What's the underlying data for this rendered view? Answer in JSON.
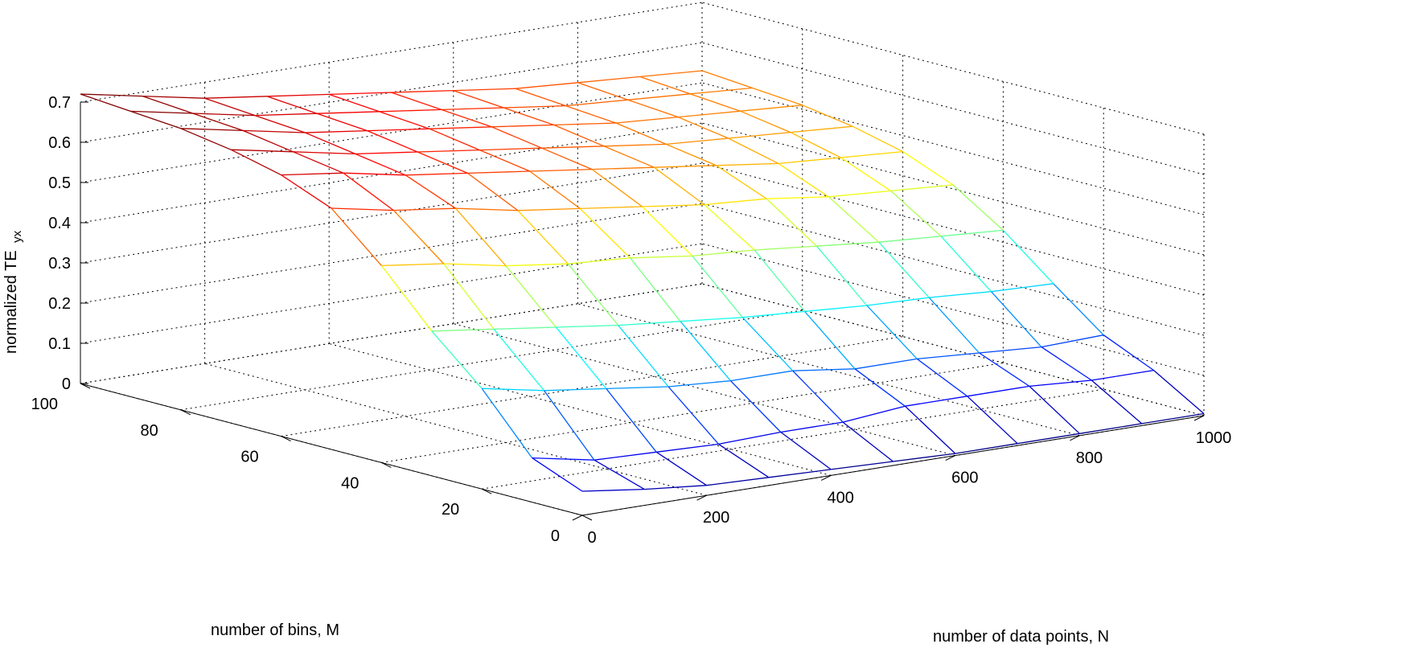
{
  "chart_data": {
    "type": "surface-mesh",
    "xlabel": "number of data points, N",
    "ylabel": "number of bins, M",
    "zlabel_main": "normalized TE",
    "zlabel_sub": "yx",
    "x_ticks": [
      "0",
      "200",
      "400",
      "600",
      "800",
      "1000"
    ],
    "y_ticks": [
      "0",
      "20",
      "40",
      "60",
      "80",
      "100"
    ],
    "z_ticks": [
      "0",
      "0.1",
      "0.2",
      "0.3",
      "0.4",
      "0.5",
      "0.6",
      "0.7"
    ],
    "xlim": [
      0,
      1000
    ],
    "ylim": [
      0,
      100
    ],
    "zlim": [
      0,
      0.7
    ],
    "grid": true,
    "colormap": "jet",
    "N_values": [
      0,
      100,
      200,
      300,
      400,
      500,
      600,
      700,
      800,
      900,
      1000
    ],
    "M_values": [
      0,
      10,
      20,
      30,
      40,
      50,
      60,
      70,
      80,
      90,
      100
    ],
    "z": [
      [
        0.06,
        0.04,
        0.025,
        0.02,
        0.015,
        0.01,
        0.005,
        0.005,
        0.005,
        0.005,
        0.005
      ],
      [
        0.11,
        0.08,
        0.075,
        0.07,
        0.075,
        0.075,
        0.09,
        0.09,
        0.09,
        0.08,
        0.08
      ],
      [
        0.25,
        0.22,
        0.2,
        0.18,
        0.17,
        0.17,
        0.15,
        0.15,
        0.14,
        0.13,
        0.135
      ],
      [
        0.36,
        0.34,
        0.32,
        0.3,
        0.285,
        0.27,
        0.26,
        0.25,
        0.245,
        0.235,
        0.23
      ],
      [
        0.49,
        0.47,
        0.44,
        0.42,
        0.41,
        0.39,
        0.38,
        0.365,
        0.35,
        0.34,
        0.33
      ],
      [
        0.6,
        0.57,
        0.55,
        0.52,
        0.5,
        0.48,
        0.46,
        0.45,
        0.43,
        0.42,
        0.41
      ],
      [
        0.65,
        0.63,
        0.6,
        0.58,
        0.56,
        0.54,
        0.52,
        0.5,
        0.48,
        0.47,
        0.46
      ],
      [
        0.68,
        0.65,
        0.62,
        0.6,
        0.58,
        0.56,
        0.54,
        0.52,
        0.51,
        0.5,
        0.49
      ],
      [
        0.7,
        0.67,
        0.64,
        0.62,
        0.6,
        0.58,
        0.56,
        0.54,
        0.53,
        0.52,
        0.51
      ],
      [
        0.71,
        0.68,
        0.65,
        0.63,
        0.61,
        0.59,
        0.57,
        0.55,
        0.54,
        0.53,
        0.52
      ],
      [
        0.72,
        0.69,
        0.66,
        0.64,
        0.62,
        0.6,
        0.58,
        0.56,
        0.55,
        0.54,
        0.53
      ]
    ]
  }
}
